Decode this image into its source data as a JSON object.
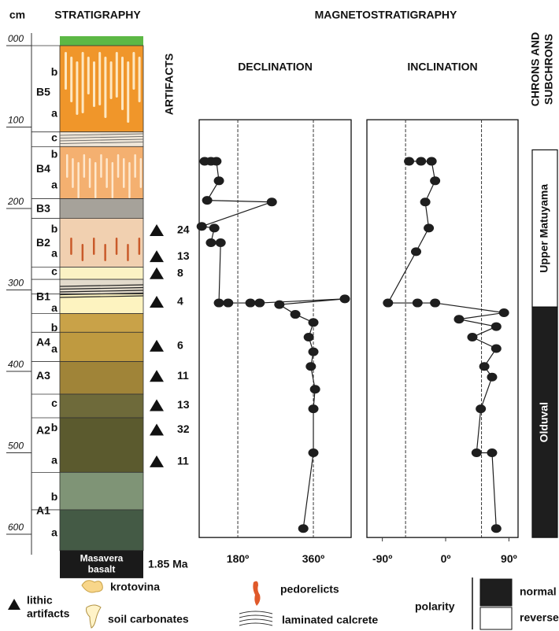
{
  "headers": {
    "stratigraphy": "STRATIGRAPHY",
    "magnetostratigraphy": "MAGNETOSTRATIGRAPHY",
    "artifacts": "ARTIFACTS",
    "chrons": [
      "CHRONS AND",
      "SUBCHRONS"
    ]
  },
  "depth_axis": {
    "label": "cm",
    "ticks": [
      {
        "value": 0,
        "label": "000"
      },
      {
        "value": 100,
        "label": "100"
      },
      {
        "value": 200,
        "label": "200"
      },
      {
        "value": 300,
        "label": "300"
      },
      {
        "value": 400,
        "label": "400"
      },
      {
        "value": 500,
        "label": "500"
      },
      {
        "value": 600,
        "label": "600"
      }
    ]
  },
  "stratigraphy": {
    "layers": [
      {
        "top": 0,
        "bottom": 106,
        "color": "#f0962a"
      },
      {
        "top": 106,
        "bottom": 124,
        "color": "#efe6d8"
      },
      {
        "top": 124,
        "bottom": 188,
        "color": "#f4b070"
      },
      {
        "top": 188,
        "bottom": 212,
        "color": "#a6a29a"
      },
      {
        "top": 212,
        "bottom": 272,
        "color": "#f1d0b0"
      },
      {
        "top": 272,
        "bottom": 287,
        "color": "#fbf2c4"
      },
      {
        "top": 287,
        "bottom": 305,
        "color": "#e3dbcc"
      },
      {
        "top": 305,
        "bottom": 329,
        "color": "#fdf3c0"
      },
      {
        "top": 329,
        "bottom": 352,
        "color": "#c9a248"
      },
      {
        "top": 352,
        "bottom": 388,
        "color": "#bf9a40"
      },
      {
        "top": 388,
        "bottom": 428,
        "color": "#a08438"
      },
      {
        "top": 428,
        "bottom": 457,
        "color": "#6e6a3a"
      },
      {
        "top": 457,
        "bottom": 524,
        "color": "#5b5a2e"
      },
      {
        "top": 524,
        "bottom": 570,
        "color": "#7f9476"
      },
      {
        "top": 570,
        "bottom": 620,
        "color": "#445a45"
      }
    ],
    "horizons": [
      {
        "text": "B5",
        "depth": 58
      },
      {
        "text": "B4",
        "depth": 152
      },
      {
        "text": "B3",
        "depth": 201
      },
      {
        "text": "B2",
        "depth": 243
      },
      {
        "text": "B1",
        "depth": 309
      },
      {
        "text": "A4",
        "depth": 365
      },
      {
        "text": "A3",
        "depth": 406
      },
      {
        "text": "A2",
        "depth": 473
      },
      {
        "text": "A1",
        "depth": 572
      }
    ],
    "sublayers": [
      {
        "text": "b",
        "depth": 33
      },
      {
        "text": "a",
        "depth": 84
      },
      {
        "text": "c",
        "depth": 114
      },
      {
        "text": "b",
        "depth": 134
      },
      {
        "text": "a",
        "depth": 172
      },
      {
        "text": "b",
        "depth": 226
      },
      {
        "text": "a",
        "depth": 256
      },
      {
        "text": "c",
        "depth": 278
      },
      {
        "text": "a",
        "depth": 323
      },
      {
        "text": "b",
        "depth": 347
      },
      {
        "text": "a",
        "depth": 373
      },
      {
        "text": "c",
        "depth": 440
      },
      {
        "text": "b",
        "depth": 470
      },
      {
        "text": "a",
        "depth": 510
      },
      {
        "text": "b",
        "depth": 555
      },
      {
        "text": "a",
        "depth": 599
      }
    ],
    "basalt": {
      "label": [
        "Masavera",
        "basalt"
      ],
      "top": 620,
      "bottom": 654
    },
    "age": "1.85 Ma"
  },
  "artifacts": [
    {
      "depth": 227,
      "count": 24
    },
    {
      "depth": 259,
      "count": 13
    },
    {
      "depth": 280,
      "count": 8
    },
    {
      "depth": 315,
      "count": 4
    },
    {
      "depth": 369,
      "count": 6
    },
    {
      "depth": 406,
      "count": 11
    },
    {
      "depth": 442,
      "count": 13
    },
    {
      "depth": 472,
      "count": 32
    },
    {
      "depth": 511,
      "count": 11
    }
  ],
  "chart_data": [
    {
      "type": "line",
      "title": "DECLINATION",
      "y": [
        142,
        142,
        142,
        166,
        190,
        192,
        222,
        224,
        242,
        242,
        316,
        316,
        316,
        316,
        311,
        318,
        330,
        340,
        358,
        376,
        394,
        422,
        446,
        500,
        593
      ],
      "values": [
        101,
        116,
        129,
        135,
        107,
        261,
        94,
        124,
        116,
        139,
        135,
        157,
        210,
        232,
        435,
        279,
        317,
        360,
        349,
        360,
        354,
        364,
        360,
        360,
        336
      ],
      "xlim": [
        88,
        450
      ],
      "xticks": [
        {
          "value": 180,
          "label": "180º"
        },
        {
          "value": 360,
          "label": "360º"
        }
      ],
      "ylim": [
        91,
        604
      ],
      "grid": true,
      "color": "#1e1e1e"
    },
    {
      "type": "line",
      "title": "INCLINATION",
      "y": [
        142,
        142,
        142,
        166,
        192,
        224,
        253,
        316,
        316,
        316,
        328,
        336,
        345,
        358,
        372,
        394,
        407,
        446,
        500,
        500,
        593
      ],
      "values": [
        -52,
        -35,
        -20,
        -15,
        -29,
        -24,
        -42,
        -82,
        -40,
        -15,
        83,
        19,
        72,
        38,
        72,
        55,
        66,
        50,
        44,
        66,
        72
      ],
      "xlim": [
        -112,
        103
      ],
      "xticks": [
        {
          "value": -90,
          "label": "-90º"
        },
        {
          "value": 0,
          "label": "0º"
        },
        {
          "value": 90,
          "label": "90º"
        }
      ],
      "ylim": [
        91,
        604
      ],
      "grid": false,
      "reference_lines": [
        -57,
        51
      ],
      "color": "#1e1e1e"
    }
  ],
  "chrons": [
    {
      "name": "Upper Matuyama",
      "top": 128,
      "bottom": 321,
      "color": "#ffffff",
      "text_color": "#111111"
    },
    {
      "name": "Olduval",
      "top": 321,
      "bottom": 604,
      "color": "#1e1e1e",
      "text_color": "#ffffff"
    }
  ],
  "legend": {
    "artifacts": [
      "lithic",
      "artifacts"
    ],
    "krotovina": "krotovina",
    "carbonates": "soil carbonates",
    "pedorelicts": "pedorelicts",
    "calcrete": "laminated calcrete",
    "polarity": "polarity",
    "normal": "normal",
    "reverse": "reverse"
  }
}
